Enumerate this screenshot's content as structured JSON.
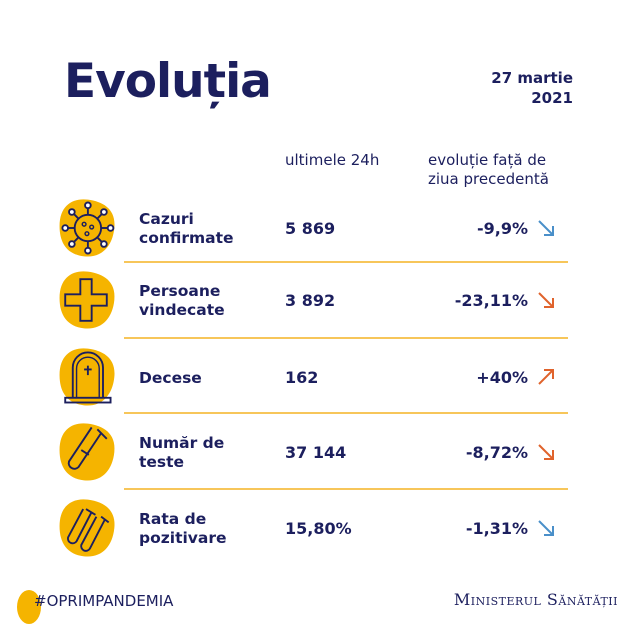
{
  "title": "Evoluția",
  "date_line1": "27 martie",
  "date_line2": "2021",
  "headers": {
    "col1": "ultimele 24h",
    "col2": "evoluție față de ziua precedentă"
  },
  "rows": [
    {
      "label": "Cazuri confirmate",
      "value": "5 869",
      "change": "-9,9%",
      "direction": "down",
      "arrow_color": "#4a8fc9",
      "icon": "virus-icon"
    },
    {
      "label": "Persoane vindecate",
      "value": "3 892",
      "change": "-23,11%",
      "direction": "down",
      "arrow_color": "#e0632c",
      "icon": "medical-cross-icon"
    },
    {
      "label": "Decese",
      "value": "162",
      "change": "+40%",
      "direction": "up",
      "arrow_color": "#e0632c",
      "icon": "tombstone-icon"
    },
    {
      "label": "Număr de teste",
      "value": "37 144",
      "change": "-8,72%",
      "direction": "down",
      "arrow_color": "#e0632c",
      "icon": "test-tube-icon"
    },
    {
      "label": "Rata de pozitivare",
      "value": "15,80%",
      "change": "-1,31%",
      "direction": "down",
      "arrow_color": "#4a8fc9",
      "icon": "test-tubes-icon"
    }
  ],
  "footer": {
    "hashtag": "#OPRIMPANDEMIA",
    "ministry": "Ministerul Sănătății"
  },
  "colors": {
    "navy": "#1c1f5e",
    "yellow": "#f5b400",
    "separator": "#f7c65a"
  }
}
